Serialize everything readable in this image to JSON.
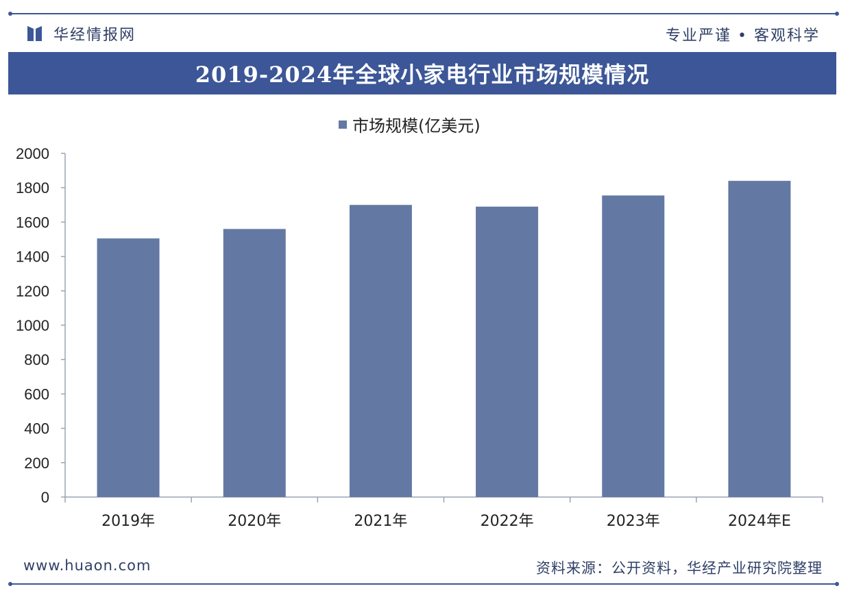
{
  "header": {
    "brand": "华经情报网",
    "slogan": "专业严谨 • 客观科学"
  },
  "colors": {
    "accent": "#3c5697",
    "bar": "#6379a3"
  },
  "chart_data": {
    "type": "bar",
    "title": "2019-2024年全球小家电行业市场规模情况",
    "categories": [
      "2019年",
      "2020年",
      "2021年",
      "2022年",
      "2023年",
      "2024年E"
    ],
    "series": [
      {
        "name": "市场规模(亿美元)",
        "values": [
          1505,
          1560,
          1700,
          1690,
          1755,
          1840
        ]
      }
    ],
    "ylim": [
      0,
      2000
    ],
    "yticks": [
      0,
      200,
      400,
      600,
      800,
      1000,
      1200,
      1400,
      1600,
      1800,
      2000
    ],
    "grid": false,
    "legend": "top"
  },
  "footer": {
    "website": "www.huaon.com",
    "source": "资料来源：公开资料，华经产业研究院整理"
  }
}
